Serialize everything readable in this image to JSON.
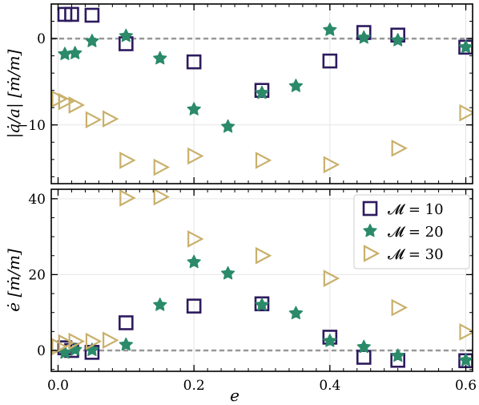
{
  "colors": {
    "series_10": "#2d1b5e",
    "series_20": "#2a8a69",
    "series_30": "#c9b06b",
    "zero_line": "#999999",
    "grid": "#e6e6e6"
  },
  "chart_data": [
    {
      "type": "scatter",
      "panel": "top",
      "ylabel": "|ȧ/a| [ṁ/m]",
      "xlim": [
        -0.01,
        0.61
      ],
      "ylim": [
        -16.8,
        4.0
      ],
      "yticks": [
        0,
        -10
      ],
      "ytick_labels": [
        "0",
        "−10"
      ],
      "zero_line": true,
      "grid": true,
      "series": [
        {
          "name": "𝓜 = 10",
          "marker": "square",
          "points": [
            [
              0.01,
              2.8
            ],
            [
              0.02,
              2.8
            ],
            [
              0.05,
              2.7
            ],
            [
              0.1,
              -0.6
            ],
            [
              0.2,
              -2.7
            ],
            [
              0.3,
              -6.0
            ],
            [
              0.4,
              -2.6
            ],
            [
              0.45,
              0.7
            ],
            [
              0.5,
              0.4
            ],
            [
              0.6,
              -1.0
            ]
          ]
        },
        {
          "name": "𝓜 = 20",
          "marker": "star",
          "points": [
            [
              0.01,
              -1.8
            ],
            [
              0.025,
              -1.7
            ],
            [
              0.05,
              -0.3
            ],
            [
              0.1,
              0.3
            ],
            [
              0.15,
              -2.3
            ],
            [
              0.2,
              -8.2
            ],
            [
              0.25,
              -10.2
            ],
            [
              0.3,
              -6.3
            ],
            [
              0.35,
              -5.5
            ],
            [
              0.4,
              1.0
            ],
            [
              0.45,
              0.1
            ],
            [
              0.5,
              -0.2
            ],
            [
              0.6,
              -1.0
            ]
          ]
        },
        {
          "name": "𝓜 = 30",
          "marker": "triangle-right",
          "points": [
            [
              0.0,
              -7.0
            ],
            [
              0.01,
              -7.3
            ],
            [
              0.025,
              -7.7
            ],
            [
              0.05,
              -9.4
            ],
            [
              0.075,
              -9.3
            ],
            [
              0.1,
              -14.1
            ],
            [
              0.15,
              -14.9
            ],
            [
              0.2,
              -13.6
            ],
            [
              0.3,
              -14.1
            ],
            [
              0.4,
              -14.6
            ],
            [
              0.5,
              -12.7
            ],
            [
              0.6,
              -8.6
            ]
          ]
        }
      ]
    },
    {
      "type": "scatter",
      "panel": "bottom",
      "xlabel": "e",
      "ylabel": "ė [ṁ/m]",
      "xlim": [
        -0.01,
        0.61
      ],
      "ylim": [
        -5.5,
        42.5
      ],
      "xticks": [
        0.0,
        0.2,
        0.4,
        0.6
      ],
      "xtick_labels": [
        "0.0",
        "0.2",
        "0.4",
        "0.6"
      ],
      "yticks": [
        0,
        20,
        40
      ],
      "ytick_labels": [
        "0",
        "20",
        "40"
      ],
      "zero_line": true,
      "grid": true,
      "legend": {
        "position": "top-right",
        "entries": [
          "𝓜 = 10",
          "𝓜 = 20",
          "𝓜 = 30"
        ]
      },
      "series": [
        {
          "name": "𝓜 = 10",
          "marker": "square",
          "points": [
            [
              0.01,
              0.7
            ],
            [
              0.02,
              0.0
            ],
            [
              0.05,
              -0.5
            ],
            [
              0.1,
              7.3
            ],
            [
              0.2,
              11.7
            ],
            [
              0.3,
              12.3
            ],
            [
              0.4,
              3.5
            ],
            [
              0.45,
              -1.8
            ],
            [
              0.5,
              -2.6
            ],
            [
              0.6,
              -2.7
            ]
          ]
        },
        {
          "name": "𝓜 = 20",
          "marker": "star",
          "points": [
            [
              0.01,
              -0.6
            ],
            [
              0.025,
              0.2
            ],
            [
              0.05,
              0.1
            ],
            [
              0.1,
              1.5
            ],
            [
              0.15,
              12.0
            ],
            [
              0.2,
              23.3
            ],
            [
              0.25,
              20.3
            ],
            [
              0.3,
              12.0
            ],
            [
              0.35,
              9.8
            ],
            [
              0.4,
              2.5
            ],
            [
              0.45,
              0.9
            ],
            [
              0.5,
              -1.4
            ],
            [
              0.6,
              -2.6
            ]
          ]
        },
        {
          "name": "𝓜 = 30",
          "marker": "triangle-right",
          "points": [
            [
              0.0,
              1.0
            ],
            [
              0.01,
              2.0
            ],
            [
              0.025,
              2.4
            ],
            [
              0.05,
              2.4
            ],
            [
              0.075,
              2.7
            ],
            [
              0.1,
              40.2
            ],
            [
              0.15,
              40.5
            ],
            [
              0.2,
              29.4
            ],
            [
              0.3,
              25.0
            ],
            [
              0.4,
              19.0
            ],
            [
              0.5,
              11.3
            ],
            [
              0.6,
              4.9
            ]
          ]
        }
      ]
    }
  ]
}
